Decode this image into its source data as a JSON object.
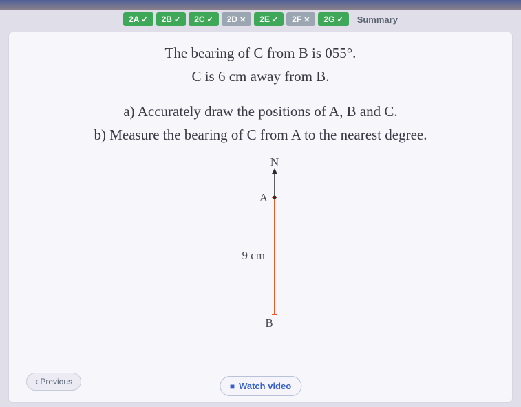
{
  "tabs": [
    {
      "label": "2A",
      "status": "done",
      "mark": "✓"
    },
    {
      "label": "2B",
      "status": "done",
      "mark": "✓"
    },
    {
      "label": "2C",
      "status": "done",
      "mark": "✓"
    },
    {
      "label": "2D",
      "status": "skip",
      "mark": "✕"
    },
    {
      "label": "2E",
      "status": "done",
      "mark": "✓"
    },
    {
      "label": "2F",
      "status": "skip",
      "mark": "✕"
    },
    {
      "label": "2G",
      "status": "done",
      "mark": "✓"
    }
  ],
  "summary_label": "Summary",
  "problem": {
    "line1_pre": "The bearing of ",
    "line1_c": "C",
    "line1_mid": " from ",
    "line1_b": "B",
    "line1_post": " is 055°.",
    "line2_c": "C",
    "line2_mid": " is 6 cm away from ",
    "line2_b": "B",
    "line2_post": ".",
    "qa": "a) Accurately draw the positions of A, B and C.",
    "qb": "b) Measure the bearing of C from A to the nearest degree."
  },
  "diagram": {
    "north_label": "N",
    "point_a": "A",
    "point_b": "B",
    "length_label": "9 cm",
    "line_color": "#e85a2a",
    "text_color": "#4a4a54",
    "label_fontsize": 17,
    "north_arrow_len": 42,
    "ab_len": 170
  },
  "buttons": {
    "previous": "Previous",
    "watch": "Watch video"
  },
  "colors": {
    "tab_done": "#3fa858",
    "tab_skip": "#9ca6b2",
    "card_bg": "#f7f6fa",
    "page_bg": "#e0dee8"
  }
}
